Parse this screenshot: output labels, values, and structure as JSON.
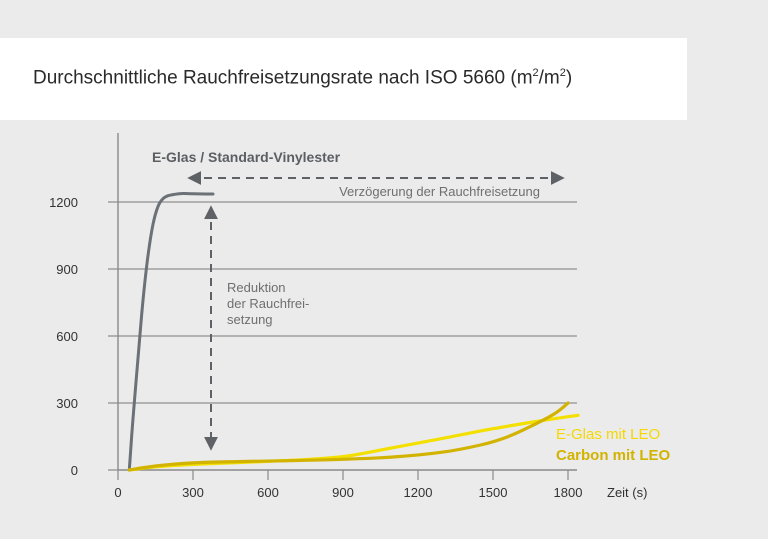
{
  "chart_data": {
    "type": "line",
    "title_main": "Durchschnittliche Rauchfreisetzungsrate nach ISO 5660 (m",
    "title_sup1": "2",
    "title_mid": "/m",
    "title_sup2": "2",
    "title_end": ")",
    "xlabel": "Zeit (s)",
    "xlim": [
      0,
      1800
    ],
    "ylim": [
      0,
      1200
    ],
    "xticks": [
      "0",
      "300",
      "600",
      "900",
      "1200",
      "1500",
      "1800"
    ],
    "yticks": [
      "0",
      "300",
      "600",
      "900",
      "1200"
    ],
    "grid": "horizontal",
    "series": [
      {
        "name": "E-Glas / Standard-Vinylester",
        "color": "#6b7177",
        "x": [
          45,
          60,
          80,
          100,
          120,
          140,
          160,
          180,
          200,
          230,
          260,
          300,
          350,
          380
        ],
        "y": [
          0,
          230,
          500,
          760,
          960,
          1100,
          1180,
          1215,
          1228,
          1235,
          1238,
          1237,
          1236,
          1236
        ]
      },
      {
        "name": "E-Glas mit LEO",
        "color": "#f4e000",
        "x": [
          45,
          150,
          300,
          500,
          700,
          900,
          1100,
          1300,
          1500,
          1700,
          1840
        ],
        "y": [
          0,
          14,
          25,
          34,
          44,
          60,
          100,
          142,
          185,
          222,
          245
        ]
      },
      {
        "name": "Carbon mit LEO",
        "color": "#d2b300",
        "x": [
          45,
          150,
          300,
          500,
          700,
          900,
          1100,
          1300,
          1450,
          1550,
          1650,
          1750,
          1800
        ],
        "y": [
          0,
          18,
          32,
          38,
          42,
          48,
          58,
          80,
          112,
          145,
          195,
          255,
          300
        ]
      }
    ],
    "annotations": {
      "series_title": "E-Glas / Standard-Vinylester",
      "delay_label": "Verzögerung der Rauchfreisetzung",
      "reduction_lines": [
        "Reduktion",
        "der Rauchfrei-",
        "setzung"
      ]
    },
    "legend_placement": "bottom-right"
  }
}
